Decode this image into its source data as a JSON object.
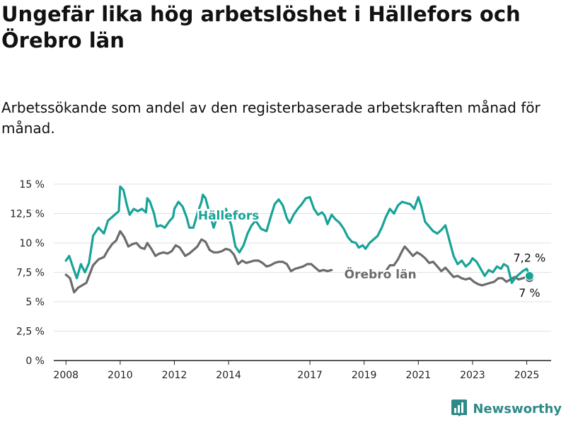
{
  "header": {
    "title": "Ungefär lika hög arbetslöshet i Hällefors och Örebro län",
    "subtitle": "Arbetssökande som andel av den registerbaserade arbetskraften månad för månad."
  },
  "brand": {
    "name": "Newsworthy",
    "icon": "bar-chart-logo-icon"
  },
  "colors": {
    "hallefors": "#17a398",
    "orebro": "#6b6b6b",
    "grid": "#e0e0e0",
    "axis": "#222222"
  },
  "chart_data": {
    "type": "line",
    "title": "",
    "xlabel": "",
    "ylabel": "",
    "ylim": [
      0,
      15
    ],
    "xlim": [
      2007.55,
      2025.9
    ],
    "x_ticks": [
      {
        "value": 2008,
        "label": "2008"
      },
      {
        "value": 2010,
        "label": "2010"
      },
      {
        "value": 2012,
        "label": "2012"
      },
      {
        "value": 2014,
        "label": "2014"
      },
      {
        "value": 2017,
        "label": "2017"
      },
      {
        "value": 2019,
        "label": "2019"
      },
      {
        "value": 2021,
        "label": "2021"
      },
      {
        "value": 2023,
        "label": "2023"
      },
      {
        "value": 2025,
        "label": "2025"
      }
    ],
    "y_ticks": [
      {
        "value": 0,
        "label": "0 %"
      },
      {
        "value": 2.5,
        "label": "2,5 %"
      },
      {
        "value": 5,
        "label": "5 %"
      },
      {
        "value": 7.5,
        "label": "7,5 %"
      },
      {
        "value": 10,
        "label": "10 %"
      },
      {
        "value": 12.5,
        "label": "12,5 %"
      },
      {
        "value": 15,
        "label": "15 %"
      }
    ],
    "grid": true,
    "series": [
      {
        "name": "Hällefors",
        "end_label": "7,2 %",
        "points": [
          [
            2008.0,
            8.5
          ],
          [
            2008.12,
            8.9
          ],
          [
            2008.25,
            8.0
          ],
          [
            2008.4,
            7.0
          ],
          [
            2008.55,
            8.2
          ],
          [
            2008.7,
            7.5
          ],
          [
            2008.85,
            8.3
          ],
          [
            2009.0,
            10.6
          ],
          [
            2009.2,
            11.3
          ],
          [
            2009.4,
            10.8
          ],
          [
            2009.55,
            11.9
          ],
          [
            2009.7,
            12.2
          ],
          [
            2009.85,
            12.5
          ],
          [
            2009.95,
            12.7
          ],
          [
            2010.0,
            14.8
          ],
          [
            2010.12,
            14.5
          ],
          [
            2010.25,
            13.2
          ],
          [
            2010.35,
            12.4
          ],
          [
            2010.5,
            12.9
          ],
          [
            2010.65,
            12.7
          ],
          [
            2010.8,
            12.9
          ],
          [
            2010.95,
            12.6
          ],
          [
            2011.0,
            13.8
          ],
          [
            2011.1,
            13.5
          ],
          [
            2011.25,
            12.5
          ],
          [
            2011.35,
            11.4
          ],
          [
            2011.5,
            11.5
          ],
          [
            2011.65,
            11.3
          ],
          [
            2011.8,
            11.8
          ],
          [
            2011.95,
            12.2
          ],
          [
            2012.0,
            12.9
          ],
          [
            2012.15,
            13.5
          ],
          [
            2012.3,
            13.1
          ],
          [
            2012.45,
            12.2
          ],
          [
            2012.55,
            11.3
          ],
          [
            2012.7,
            11.3
          ],
          [
            2012.85,
            12.5
          ],
          [
            2013.0,
            13.5
          ],
          [
            2013.05,
            14.1
          ],
          [
            2013.15,
            13.8
          ],
          [
            2013.3,
            12.5
          ],
          [
            2013.45,
            11.3
          ],
          [
            2013.6,
            12.4
          ],
          [
            2013.75,
            12.6
          ],
          [
            2013.9,
            12.9
          ],
          [
            2014.1,
            11.5
          ],
          [
            2014.25,
            9.7
          ],
          [
            2014.4,
            9.2
          ],
          [
            2014.55,
            9.8
          ],
          [
            2014.7,
            10.8
          ],
          [
            2014.85,
            11.5
          ],
          [
            2015.0,
            11.9
          ],
          [
            2015.2,
            11.2
          ],
          [
            2015.4,
            11.0
          ],
          [
            2015.55,
            12.2
          ],
          [
            2015.7,
            13.3
          ],
          [
            2015.85,
            13.7
          ],
          [
            2016.0,
            13.2
          ],
          [
            2016.15,
            12.1
          ],
          [
            2016.25,
            11.7
          ],
          [
            2016.4,
            12.4
          ],
          [
            2016.55,
            12.9
          ],
          [
            2016.7,
            13.3
          ],
          [
            2016.85,
            13.8
          ],
          [
            2017.0,
            13.9
          ],
          [
            2017.15,
            12.9
          ],
          [
            2017.3,
            12.4
          ],
          [
            2017.45,
            12.6
          ],
          [
            2017.55,
            12.3
          ],
          [
            2017.65,
            11.6
          ],
          [
            2017.8,
            12.4
          ],
          [
            2017.95,
            12.0
          ],
          [
            2018.1,
            11.7
          ],
          [
            2018.25,
            11.2
          ],
          [
            2018.4,
            10.5
          ],
          [
            2018.55,
            10.1
          ],
          [
            2018.7,
            10.0
          ],
          [
            2018.8,
            9.6
          ],
          [
            2018.95,
            9.8
          ],
          [
            2019.05,
            9.5
          ],
          [
            2019.2,
            10.0
          ],
          [
            2019.35,
            10.3
          ],
          [
            2019.5,
            10.6
          ],
          [
            2019.65,
            11.3
          ],
          [
            2019.8,
            12.2
          ],
          [
            2019.95,
            12.9
          ],
          [
            2020.1,
            12.5
          ],
          [
            2020.25,
            13.2
          ],
          [
            2020.4,
            13.5
          ],
          [
            2020.55,
            13.4
          ],
          [
            2020.7,
            13.3
          ],
          [
            2020.85,
            12.9
          ],
          [
            2021.0,
            13.9
          ],
          [
            2021.1,
            13.2
          ],
          [
            2021.25,
            11.8
          ],
          [
            2021.4,
            11.4
          ],
          [
            2021.55,
            11.0
          ],
          [
            2021.7,
            10.8
          ],
          [
            2021.85,
            11.1
          ],
          [
            2022.0,
            11.5
          ],
          [
            2022.15,
            10.2
          ],
          [
            2022.3,
            8.9
          ],
          [
            2022.45,
            8.2
          ],
          [
            2022.6,
            8.5
          ],
          [
            2022.75,
            8.0
          ],
          [
            2022.9,
            8.3
          ],
          [
            2023.0,
            8.7
          ],
          [
            2023.15,
            8.4
          ],
          [
            2023.3,
            7.8
          ],
          [
            2023.45,
            7.2
          ],
          [
            2023.6,
            7.7
          ],
          [
            2023.75,
            7.5
          ],
          [
            2023.9,
            8.0
          ],
          [
            2024.05,
            7.8
          ],
          [
            2024.15,
            8.2
          ],
          [
            2024.3,
            8.0
          ],
          [
            2024.45,
            6.6
          ],
          [
            2024.6,
            7.1
          ],
          [
            2024.75,
            7.4
          ],
          [
            2024.85,
            7.6
          ],
          [
            2025.0,
            7.8
          ],
          [
            2025.1,
            7.2
          ]
        ]
      },
      {
        "name": "Örebro län",
        "end_label": "7 %",
        "points": [
          [
            2008.0,
            7.3
          ],
          [
            2008.15,
            7.0
          ],
          [
            2008.3,
            5.8
          ],
          [
            2008.45,
            6.2
          ],
          [
            2008.6,
            6.4
          ],
          [
            2008.75,
            6.6
          ],
          [
            2008.85,
            7.2
          ],
          [
            2009.0,
            8.1
          ],
          [
            2009.2,
            8.6
          ],
          [
            2009.4,
            8.8
          ],
          [
            2009.55,
            9.4
          ],
          [
            2009.7,
            9.9
          ],
          [
            2009.85,
            10.2
          ],
          [
            2010.0,
            11.0
          ],
          [
            2010.15,
            10.5
          ],
          [
            2010.3,
            9.7
          ],
          [
            2010.45,
            9.9
          ],
          [
            2010.6,
            10.0
          ],
          [
            2010.75,
            9.6
          ],
          [
            2010.9,
            9.5
          ],
          [
            2011.0,
            10.0
          ],
          [
            2011.15,
            9.5
          ],
          [
            2011.3,
            8.9
          ],
          [
            2011.45,
            9.1
          ],
          [
            2011.6,
            9.2
          ],
          [
            2011.75,
            9.1
          ],
          [
            2011.9,
            9.3
          ],
          [
            2012.05,
            9.8
          ],
          [
            2012.2,
            9.6
          ],
          [
            2012.4,
            8.9
          ],
          [
            2012.55,
            9.1
          ],
          [
            2012.7,
            9.4
          ],
          [
            2012.85,
            9.7
          ],
          [
            2013.0,
            10.3
          ],
          [
            2013.15,
            10.1
          ],
          [
            2013.3,
            9.4
          ],
          [
            2013.45,
            9.2
          ],
          [
            2013.6,
            9.2
          ],
          [
            2013.75,
            9.3
          ],
          [
            2013.9,
            9.5
          ],
          [
            2014.05,
            9.4
          ],
          [
            2014.2,
            9.0
          ],
          [
            2014.35,
            8.2
          ],
          [
            2014.5,
            8.5
          ],
          [
            2014.65,
            8.3
          ],
          [
            2014.8,
            8.4
          ],
          [
            2014.95,
            8.5
          ],
          [
            2015.1,
            8.5
          ],
          [
            2015.25,
            8.3
          ],
          [
            2015.4,
            8.0
          ],
          [
            2015.55,
            8.1
          ],
          [
            2015.7,
            8.3
          ],
          [
            2015.85,
            8.4
          ],
          [
            2016.0,
            8.4
          ],
          [
            2016.15,
            8.2
          ],
          [
            2016.3,
            7.6
          ],
          [
            2016.45,
            7.8
          ],
          [
            2016.6,
            7.9
          ],
          [
            2016.75,
            8.0
          ],
          [
            2016.9,
            8.2
          ],
          [
            2017.05,
            8.2
          ],
          [
            2017.2,
            7.9
          ],
          [
            2017.35,
            7.6
          ],
          [
            2017.5,
            7.7
          ],
          [
            2017.65,
            7.6
          ],
          [
            2017.8,
            7.7
          ],
          [
            2019.8,
            7.6
          ],
          [
            2019.95,
            8.1
          ],
          [
            2020.1,
            8.1
          ],
          [
            2020.25,
            8.6
          ],
          [
            2020.4,
            9.3
          ],
          [
            2020.5,
            9.7
          ],
          [
            2020.65,
            9.3
          ],
          [
            2020.8,
            8.9
          ],
          [
            2020.95,
            9.2
          ],
          [
            2021.1,
            9.0
          ],
          [
            2021.25,
            8.7
          ],
          [
            2021.4,
            8.3
          ],
          [
            2021.55,
            8.4
          ],
          [
            2021.7,
            8.0
          ],
          [
            2021.85,
            7.6
          ],
          [
            2022.0,
            7.9
          ],
          [
            2022.15,
            7.5
          ],
          [
            2022.3,
            7.1
          ],
          [
            2022.45,
            7.2
          ],
          [
            2022.6,
            7.0
          ],
          [
            2022.75,
            6.9
          ],
          [
            2022.9,
            7.0
          ],
          [
            2023.05,
            6.7
          ],
          [
            2023.2,
            6.5
          ],
          [
            2023.35,
            6.4
          ],
          [
            2023.5,
            6.5
          ],
          [
            2023.65,
            6.6
          ],
          [
            2023.8,
            6.7
          ],
          [
            2023.95,
            7.0
          ],
          [
            2024.1,
            7.0
          ],
          [
            2024.25,
            6.7
          ],
          [
            2024.4,
            6.9
          ],
          [
            2024.55,
            7.1
          ],
          [
            2024.7,
            6.9
          ],
          [
            2024.85,
            7.0
          ],
          [
            2025.0,
            7.1
          ],
          [
            2025.1,
            7.0
          ]
        ]
      }
    ],
    "annotations": [
      {
        "series": 0,
        "text": "Hällefors",
        "x": 2014.0,
        "y": 12.0
      },
      {
        "series": 1,
        "text": "Örebro län",
        "x": 2019.6,
        "y": 7.0
      }
    ]
  }
}
